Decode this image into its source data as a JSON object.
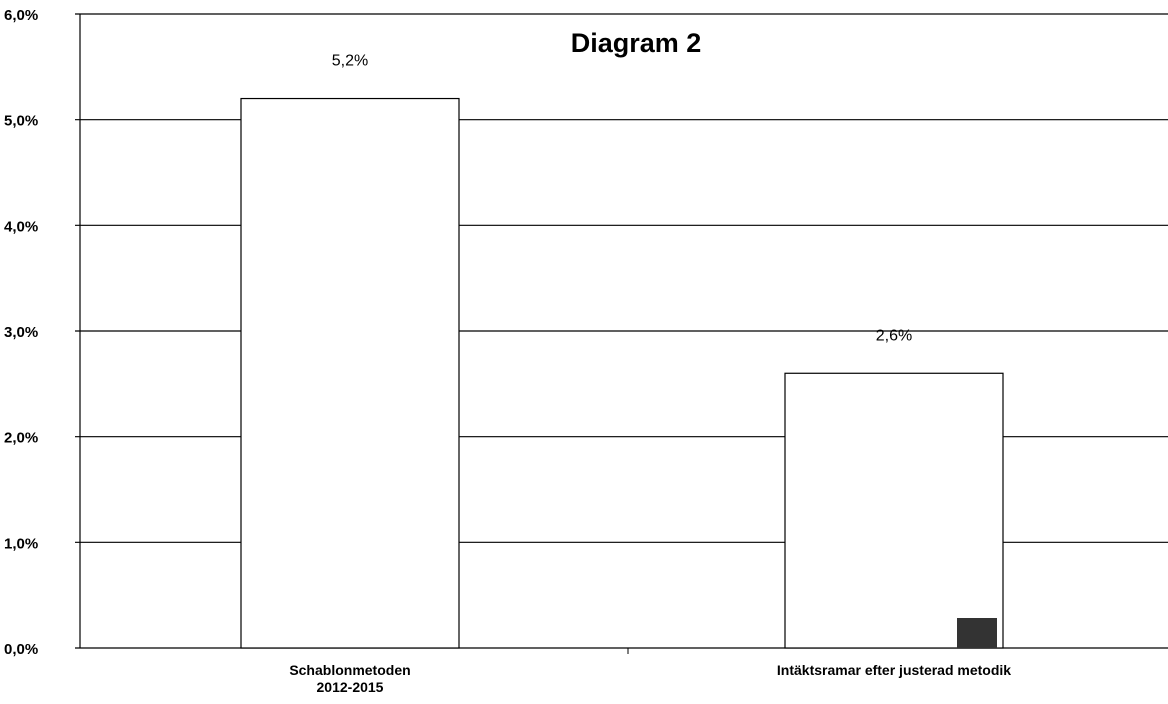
{
  "chart_data": {
    "type": "bar",
    "title": "Diagram 2",
    "xlabel": "",
    "ylabel": "",
    "ylim": [
      0,
      6
    ],
    "y_ticks": [
      "0,0%",
      "1,0%",
      "2,0%",
      "3,0%",
      "4,0%",
      "5,0%",
      "6,0%"
    ],
    "categories": [
      [
        "Schablonmetoden",
        "2012-2015"
      ],
      [
        "Intäktsramar efter justerad metodik"
      ]
    ],
    "values": [
      5.2,
      2.6
    ],
    "data_labels": [
      "5,2%",
      "2,6%"
    ],
    "grid": true,
    "legend": "none",
    "colors": {
      "bar_fill": "#ffffff",
      "bar_stroke": "#000000",
      "grid": "#000000"
    }
  }
}
